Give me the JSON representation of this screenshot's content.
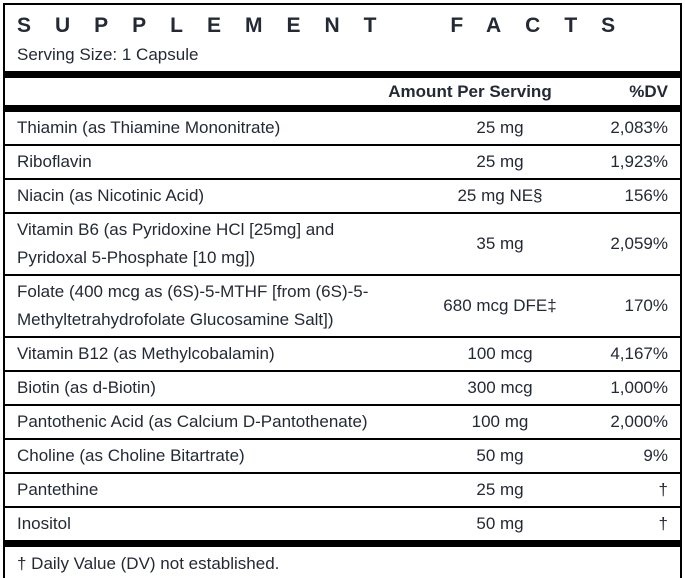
{
  "colors": {
    "text": "#242936",
    "border": "#000000",
    "background": "#ffffff"
  },
  "header": {
    "title": "SUPPLEMENT FACTS",
    "serving_size": "Serving Size: 1 Capsule"
  },
  "columns": {
    "amount": "Amount Per Serving",
    "dv": "%DV"
  },
  "rows": [
    {
      "name": "Thiamin (as Thiamine Mononitrate)",
      "amount": "25 mg",
      "dv": "2,083%"
    },
    {
      "name": "Riboflavin",
      "amount": "25 mg",
      "dv": "1,923%"
    },
    {
      "name": "Niacin (as Nicotinic Acid)",
      "amount": "25 mg NE§",
      "dv": "156%"
    },
    {
      "name": "Vitamin B6 (as Pyridoxine HCl [25mg] and Pyridoxal 5-Phosphate [10 mg])",
      "amount": "35 mg",
      "dv": "2,059%"
    },
    {
      "name": "Folate (400 mcg as (6S)-5-MTHF [from (6S)-5-Methyltetrahydrofolate Glucosamine Salt])",
      "amount": "680 mcg DFE‡",
      "dv": "170%"
    },
    {
      "name": "Vitamin B12 (as Methylcobalamin)",
      "amount": "100 mcg",
      "dv": "4,167%"
    },
    {
      "name": "Biotin (as d-Biotin)",
      "amount": "300 mcg",
      "dv": "1,000%"
    },
    {
      "name": "Pantothenic Acid (as Calcium D-Pantothenate)",
      "amount": "100 mg",
      "dv": "2,000%"
    },
    {
      "name": "Choline (as Choline Bitartrate)",
      "amount": "50 mg",
      "dv": "9%"
    },
    {
      "name": "Pantethine",
      "amount": "25 mg",
      "dv": "†"
    },
    {
      "name": "Inositol",
      "amount": "50 mg",
      "dv": "†"
    }
  ],
  "footer": {
    "note": "† Daily Value (DV) not established."
  }
}
